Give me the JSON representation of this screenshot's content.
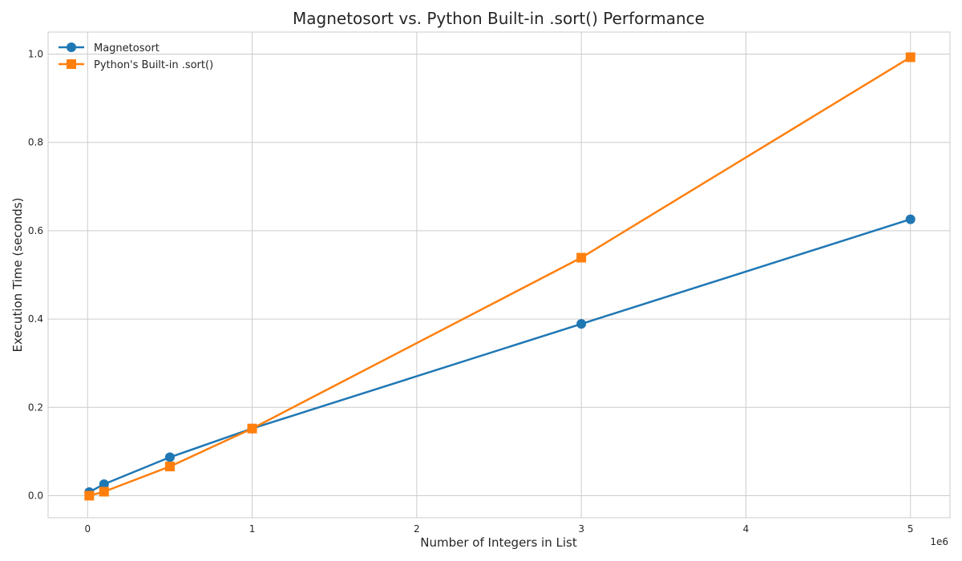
{
  "chart_data": {
    "type": "line",
    "title": "Magnetosort vs. Python Built-in .sort() Performance",
    "xlabel": "Number of Integers in List",
    "ylabel": "Execution Time (seconds)",
    "x_offset_label": "1e6",
    "xlim": [
      -240000,
      5240000
    ],
    "ylim": [
      -0.05,
      1.05
    ],
    "x_ticks": [
      0,
      1000000,
      2000000,
      3000000,
      4000000,
      5000000
    ],
    "x_tick_labels": [
      "0",
      "1",
      "2",
      "3",
      "4",
      "5"
    ],
    "y_ticks": [
      0.0,
      0.2,
      0.4,
      0.6,
      0.8,
      1.0
    ],
    "y_tick_labels": [
      "0.0",
      "0.2",
      "0.4",
      "0.6",
      "0.8",
      "1.0"
    ],
    "grid": true,
    "legend_position": "top-left",
    "x": [
      10000,
      100000,
      500000,
      1000000,
      3000000,
      5000000
    ],
    "series": [
      {
        "name": "Magnetosort",
        "marker": "circle",
        "color": "#1f77b4",
        "values": [
          0.008,
          0.026,
          0.087,
          0.152,
          0.389,
          0.626
        ]
      },
      {
        "name": "Python's Built-in .sort()",
        "marker": "square",
        "color": "#ff7f0e",
        "values": [
          0.0,
          0.009,
          0.066,
          0.152,
          0.539,
          0.993
        ]
      }
    ]
  }
}
